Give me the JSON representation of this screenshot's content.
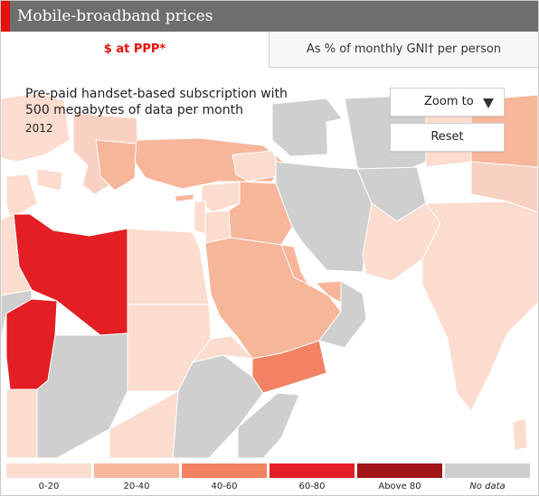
{
  "header": {
    "title": "Mobile-broadband prices"
  },
  "tabs": [
    {
      "label": "$ at PPP*",
      "active": true
    },
    {
      "label": "As % of monthly GNI† per person",
      "active": false
    }
  ],
  "map": {
    "subtitle_line1": "Pre-paid handset-based subscription with",
    "subtitle_line2": "500 megabytes of data per month",
    "year": "2012",
    "zoom_label": "Zoom to",
    "reset_label": "Reset"
  },
  "legend": [
    {
      "label": "0-20",
      "color": "#fbdccf"
    },
    {
      "label": "20-40",
      "color": "#f7b59a"
    },
    {
      "label": "40-60",
      "color": "#f28262"
    },
    {
      "label": "60-80",
      "color": "#e31e24"
    },
    {
      "label": "Above 80",
      "color": "#a11417"
    },
    {
      "label": "No data",
      "color": "#cfcfcf"
    }
  ],
  "colors": {
    "accent": "#e3120b",
    "header_bg": "#6e6e6e",
    "water": "#ffffff",
    "border": "#ffffff"
  }
}
